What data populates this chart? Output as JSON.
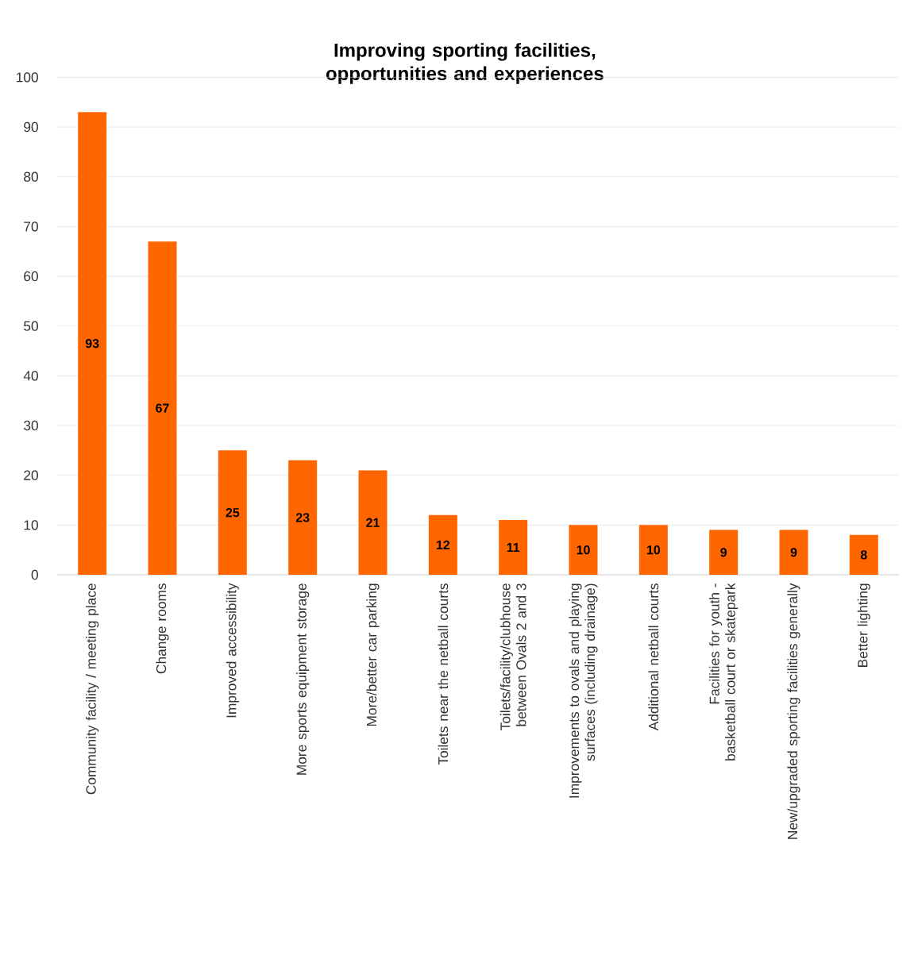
{
  "chart_data": {
    "type": "bar",
    "title": "Improving sporting facilities, opportunities and experiences",
    "categories": [
      "Community facility / meeting place",
      "Change rooms",
      "Improved accessibility",
      "More sports equipment storage",
      "More/better car parking",
      "Toilets near the netball courts",
      "Toilets/facility/clubhouse between Ovals 2 and 3",
      "Improvements to ovals and playing surfaces (including drainage)",
      "Additional netball courts",
      "Facilities for youth - basketball court or skatepark",
      "New/upgraded sporting facilities generally",
      "Better lighting"
    ],
    "values": [
      93,
      67,
      25,
      23,
      21,
      12,
      11,
      10,
      10,
      9,
      9,
      8
    ],
    "color": "#ff6600",
    "ylim": [
      0,
      100
    ],
    "yticks": [
      0,
      10,
      20,
      30,
      40,
      50,
      60,
      70,
      80,
      90,
      100
    ],
    "grid": "y",
    "data_labels": true
  }
}
